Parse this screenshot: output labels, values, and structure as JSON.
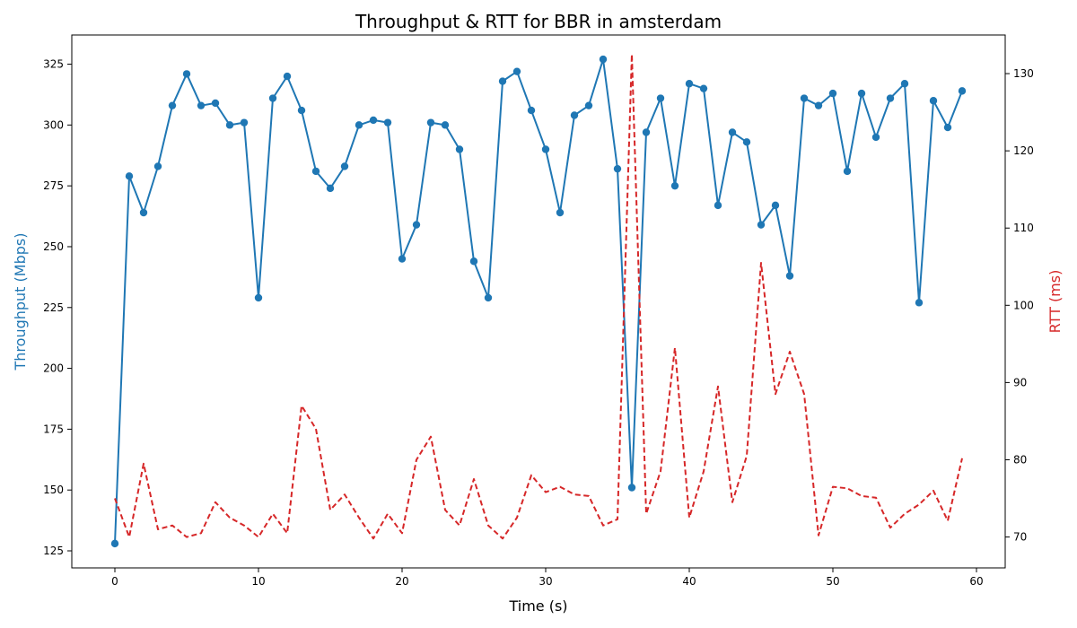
{
  "chart_data": {
    "type": "line",
    "title": "Throughput & RTT for BBR in amsterdam",
    "xlabel": "Time (s)",
    "ylabel_left": "Throughput (Mbps)",
    "ylabel_right": "RTT (ms)",
    "xlim": [
      -3,
      62
    ],
    "ylim_left": [
      118,
      337
    ],
    "ylim_right": [
      66,
      135
    ],
    "x_ticks": [
      0,
      10,
      20,
      30,
      40,
      50,
      60
    ],
    "y_left_ticks": [
      125,
      150,
      175,
      200,
      225,
      250,
      275,
      300,
      325
    ],
    "y_right_ticks": [
      70,
      80,
      90,
      100,
      110,
      120,
      130
    ],
    "grid": false,
    "colors": {
      "throughput": "#1f77b4",
      "rtt": "#d62728"
    },
    "series": [
      {
        "axis": "left",
        "style": "solid-markers",
        "x": [
          0,
          1,
          2,
          3,
          4,
          5,
          6,
          7,
          8,
          9,
          10,
          11,
          12,
          13,
          14,
          15,
          16,
          17,
          18,
          19,
          20,
          21,
          22,
          23,
          24,
          25,
          26,
          27,
          28,
          29,
          30,
          31,
          32,
          33,
          34,
          35,
          36,
          37,
          38,
          39,
          40,
          41,
          42,
          43,
          44,
          45,
          46,
          47,
          48,
          49,
          50,
          51,
          52,
          53,
          54,
          55,
          56,
          57,
          58,
          59
        ],
        "values": [
          128,
          279,
          264,
          283,
          308,
          321,
          308,
          309,
          300,
          301,
          229,
          311,
          320,
          306,
          281,
          274,
          283,
          300,
          302,
          301,
          245,
          259,
          301,
          300,
          290,
          244,
          229,
          318,
          322,
          306,
          290,
          264,
          304,
          308,
          327,
          282,
          151,
          297,
          311,
          275,
          317,
          315,
          267,
          297,
          293,
          259,
          267,
          238,
          311,
          308,
          313,
          281,
          313,
          295,
          311,
          317,
          227,
          310,
          299,
          314
        ]
      },
      {
        "axis": "right",
        "style": "dashed",
        "x": [
          0,
          1,
          2,
          3,
          4,
          5,
          6,
          7,
          8,
          9,
          10,
          11,
          12,
          13,
          14,
          15,
          16,
          17,
          18,
          19,
          20,
          21,
          22,
          23,
          24,
          25,
          26,
          27,
          28,
          29,
          30,
          31,
          32,
          33,
          34,
          35,
          36,
          37,
          38,
          39,
          40,
          41,
          42,
          43,
          44,
          45,
          46,
          47,
          48,
          49,
          50,
          51,
          52,
          53,
          54,
          55,
          56,
          57,
          58,
          59
        ],
        "values": [
          75,
          70,
          79.5,
          71,
          71.5,
          70,
          70.5,
          74.5,
          72.5,
          71.5,
          70,
          73,
          70.5,
          87,
          84,
          73.5,
          75.5,
          72.5,
          69.8,
          73,
          70.5,
          80,
          83,
          73.5,
          71.5,
          77.5,
          71.5,
          69.8,
          72.5,
          78,
          75.8,
          76.5,
          75.5,
          75.3,
          71.5,
          72.3,
          132.5,
          73,
          78.5,
          94.5,
          72.5,
          78.5,
          89.5,
          74.5,
          80.5,
          105.5,
          88.5,
          94,
          88.5,
          70.2,
          76.5,
          76.3,
          75.3,
          75.1,
          71.2,
          73,
          74.2,
          76,
          72.1,
          80.2
        ]
      }
    ]
  }
}
